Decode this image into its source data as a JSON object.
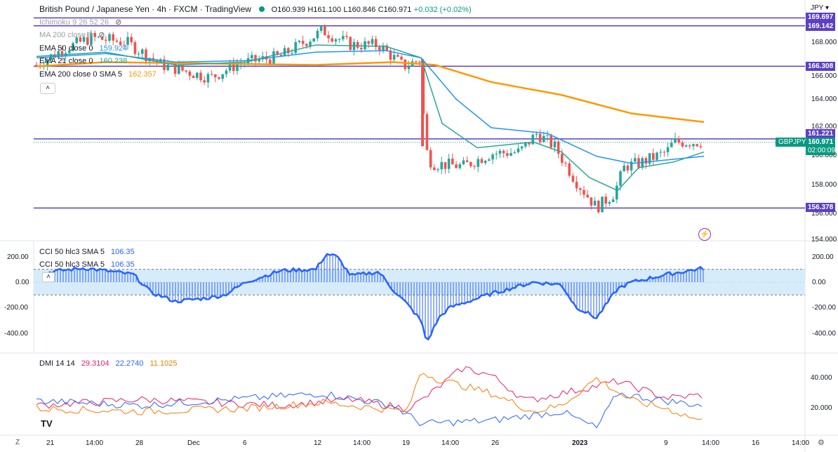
{
  "header": {
    "symbol_title": "British Pound / Japanese Yen · 4h · FXCM · TradingView",
    "open": "O160.939",
    "high": "H161.100",
    "low": "L160.846",
    "close": "C160.971",
    "change": "+0.032 (+0.02%)",
    "currency": "JPY",
    "dot_color": "#089981"
  },
  "legend": {
    "ichimoku": "Ichimoku 9 26 52 26",
    "ma200_label": "MA 200 close 0",
    "ema50_label": "EMA 50 close 0",
    "ema50_value": "159.924",
    "ema21_label": "EMA 21 close 0",
    "ema21_value": "160.238",
    "ema200_label": "EMA 200 close 0 SMA 5",
    "ema200_value": "162.357"
  },
  "price_axis": {
    "ticks": [
      "168.000",
      "166.000",
      "164.000",
      "162.000",
      "160.000",
      "158.000",
      "156.000",
      "154.000"
    ],
    "levels": [
      {
        "value": "169.697",
        "color": "#5b3fc4"
      },
      {
        "value": "169.142",
        "color": "#5b3fc4"
      },
      {
        "value": "166.308",
        "color": "#5b3fc4"
      },
      {
        "value": "161.221",
        "color": "#5b3fc4"
      },
      {
        "value": "156.378",
        "color": "#5b3fc4"
      }
    ],
    "current_price": "160.971",
    "countdown": "02:00:09",
    "symbol_tag": "GBPJPY",
    "current_color": "#089981"
  },
  "cci_panel": {
    "label_main": "CCI 50 hlc3 SMA 5",
    "value_main": "106.35",
    "label_sub": "CCI 50 hlc3 SMA 5",
    "value_sub": "106.35",
    "ticks_left": [
      "200.00",
      "0.00",
      "-200.00",
      "-400.00"
    ],
    "ticks_right": [
      "200.00",
      "0.00",
      "-200.00",
      "-400.00"
    ],
    "color": "#2962ff"
  },
  "dmi_panel": {
    "label": "DMI 14 14",
    "plus_di": "29.3104",
    "minus_di": "22.2740",
    "adx": "11.1025",
    "plus_color": "#e91e63",
    "minus_color": "#2962ff",
    "adx_color": "#f57c00",
    "ticks": [
      "40.000",
      "20.000"
    ]
  },
  "time_axis": {
    "labels": [
      "21",
      "14:00",
      "28",
      "Dec",
      "6",
      "12",
      "14:00",
      "19",
      "14:00",
      "26",
      "2023",
      "9",
      "14:00",
      "16",
      "14:00"
    ]
  },
  "colors": {
    "bull": "#26a69a",
    "bear": "#ef5350",
    "ema21": "#26a69a",
    "ema50": "#2196f3",
    "ema200": "#ff9800",
    "level_line": "#5b3fc4"
  }
}
